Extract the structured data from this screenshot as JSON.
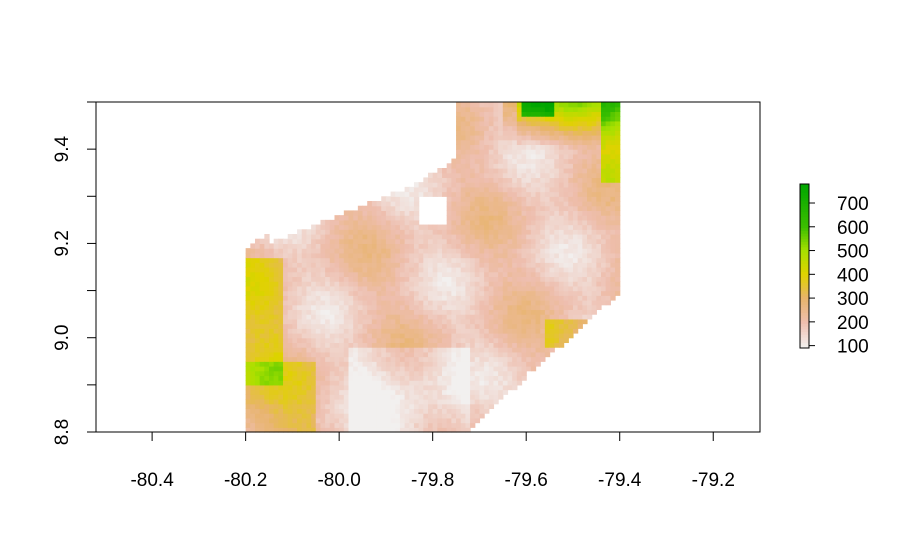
{
  "chart_data": {
    "type": "heatmap",
    "title": "",
    "xlabel": "",
    "ylabel": "",
    "xlim": [
      -80.52,
      -79.1
    ],
    "ylim": [
      8.8,
      9.5
    ],
    "x_ticks": [
      -80.4,
      -80.2,
      -80.0,
      -79.8,
      -79.6,
      -79.4,
      -79.2
    ],
    "x_tick_labels": [
      "-80.4",
      "-80.2",
      "-80.0",
      "-79.8",
      "-79.6",
      "-79.4",
      "-79.2"
    ],
    "y_ticks": [
      8.8,
      9.0,
      9.2,
      9.4
    ],
    "y_tick_labels": [
      "8.8",
      "9.0",
      "9.2",
      "9.4"
    ],
    "raster_extent": {
      "x": [
        -80.2,
        -79.4
      ],
      "y": [
        8.8,
        9.5
      ]
    },
    "legend": {
      "placement": "right",
      "min": 90,
      "max": 780,
      "ticks": [
        100,
        200,
        300,
        400,
        500,
        600,
        700
      ],
      "tick_labels": [
        "100",
        "200",
        "300",
        "400",
        "500",
        "600",
        "700"
      ],
      "color_stops": [
        {
          "value": 90,
          "color": "#F2F2F2"
        },
        {
          "value": 200,
          "color": "#EEBEAE"
        },
        {
          "value": 300,
          "color": "#E8B46C"
        },
        {
          "value": 400,
          "color": "#E0D200"
        },
        {
          "value": 500,
          "color": "#A8E000"
        },
        {
          "value": 600,
          "color": "#3CBF00"
        },
        {
          "value": 780,
          "color": "#00A600"
        }
      ]
    },
    "regions": [
      {
        "description": "no-data gaps in raster",
        "value": null
      },
      {
        "x": [
          -80.2,
          -80.15
        ],
        "y": [
          8.95,
          9.15
        ],
        "value": 360
      },
      {
        "x": [
          -80.2,
          -80.05
        ],
        "y": [
          8.8,
          8.95
        ],
        "value": 350
      },
      {
        "x": [
          -79.55,
          -79.45
        ],
        "y": [
          8.98,
          9.03
        ],
        "value": 370
      },
      {
        "x": [
          -79.62,
          -79.4
        ],
        "y": [
          9.42,
          9.5
        ],
        "value": 480
      },
      {
        "x": [
          -79.6,
          -79.55
        ],
        "y": [
          9.48,
          9.5
        ],
        "value": 760
      },
      {
        "x": [
          -79.45,
          -79.4
        ],
        "y": [
          9.35,
          9.45
        ],
        "value": 450
      },
      {
        "x": [
          -79.95,
          -79.75
        ],
        "y": [
          8.8,
          8.95
        ],
        "value": 140
      }
    ]
  }
}
